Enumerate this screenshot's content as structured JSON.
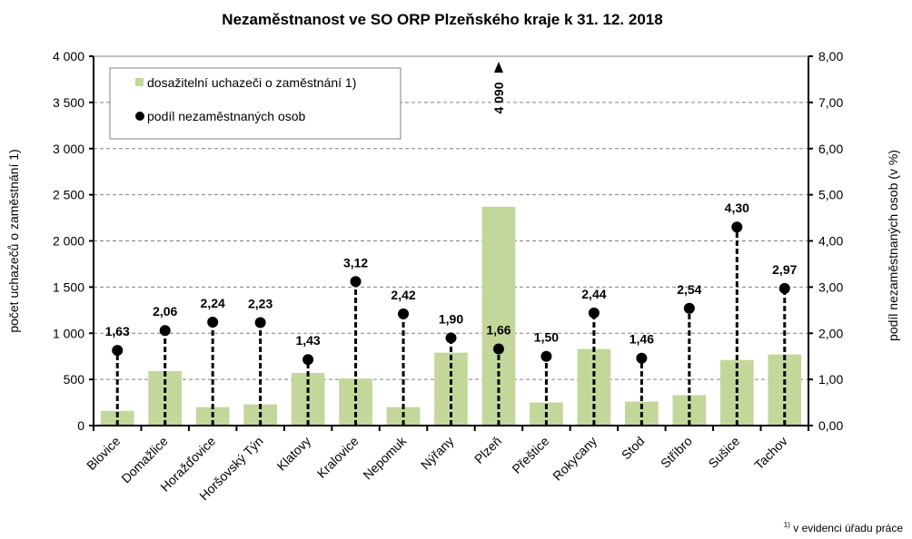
{
  "chart_data": {
    "type": "bar",
    "title": "Nezaměstnanost ve SO ORP Plzeňského kraje k 31. 12. 2018",
    "categories": [
      "Blovice",
      "Domažlice",
      "Horažďovice",
      "Horšovský Týn",
      "Klatovy",
      "Kralovice",
      "Nepomuk",
      "Nýřany",
      "Plzeň",
      "Přeštice",
      "Rokycany",
      "Stod",
      "Stříbro",
      "Sušice",
      "Tachov"
    ],
    "series": [
      {
        "name": "dosažitelní uchazeči o zaměstnání 1)",
        "type": "bar",
        "axis": "left",
        "color": "#c4d79b",
        "values": [
          160,
          590,
          200,
          230,
          570,
          510,
          200,
          790,
          4090,
          250,
          830,
          260,
          330,
          710,
          770
        ]
      },
      {
        "name": "podíl nezaměstnaných osob",
        "type": "lollipop",
        "axis": "right",
        "color": "#000000",
        "values": [
          1.63,
          2.06,
          2.24,
          2.23,
          1.43,
          3.12,
          2.42,
          1.9,
          1.66,
          1.5,
          2.44,
          1.46,
          2.54,
          4.3,
          2.97
        ],
        "labels": [
          "1,63",
          "2,06",
          "2,24",
          "2,23",
          "1,43",
          "3,12",
          "2,42",
          "1,90",
          "1,66",
          "1,50",
          "2,44",
          "1,46",
          "2,54",
          "4,30",
          "2,97"
        ]
      }
    ],
    "truncated_bar": {
      "category": "Plzeň",
      "label": "4 090",
      "display_value": 2370
    },
    "ylabel": "počet uchazečů o zaměstnání 1)",
    "y2label": "podíl nezaměstnaných osob (v %)",
    "ylim": [
      0,
      4000
    ],
    "y2lim": [
      0,
      8
    ],
    "yticks": [
      "0",
      "500",
      "1 000",
      "1 500",
      "2 000",
      "2 500",
      "3 000",
      "3 500",
      "4 000"
    ],
    "y2ticks": [
      "0,00",
      "1,00",
      "2,00",
      "3,00",
      "4,00",
      "5,00",
      "6,00",
      "7,00",
      "8,00"
    ],
    "grid": true,
    "legend_position": "top-left",
    "legend": [
      "dosažitelní uchazeči o zaměstnání 1)",
      "podíl nezaměstnaných osob"
    ]
  },
  "footnote": "v evidenci úřadu práce",
  "footnote_mark": "1)"
}
